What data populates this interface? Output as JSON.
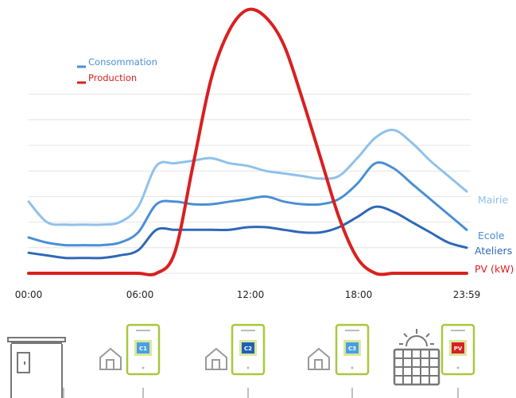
{
  "chart_data": {
    "type": "line",
    "x": [
      "00:00",
      "01:00",
      "02:00",
      "03:00",
      "04:00",
      "05:00",
      "06:00",
      "07:00",
      "08:00",
      "09:00",
      "10:00",
      "11:00",
      "12:00",
      "13:00",
      "14:00",
      "15:00",
      "16:00",
      "17:00",
      "18:00",
      "19:00",
      "20:00",
      "21:00",
      "22:00",
      "23:00",
      "23:59"
    ],
    "xticks": [
      "00:00",
      "06:00",
      "12:00",
      "18:00",
      "23:59"
    ],
    "legend": {
      "placement": "top-left",
      "items": [
        {
          "label": "Consommation",
          "color": "#4a8fd4"
        },
        {
          "label": "Production",
          "color": "#d92020"
        }
      ]
    },
    "grid": true,
    "ylim": [
      0,
      100
    ],
    "series": [
      {
        "name": "Mairie",
        "color": "#8fc1ea",
        "values": [
          28,
          20,
          19,
          19,
          19,
          20,
          26,
          42,
          43,
          44,
          45,
          43,
          42,
          40,
          39,
          38,
          37,
          38,
          45,
          53,
          56,
          51,
          44,
          38,
          32
        ]
      },
      {
        "name": "Ecole",
        "color": "#4a8fd4",
        "values": [
          14,
          12,
          11,
          11,
          11,
          12,
          16,
          27,
          28,
          27,
          27,
          28,
          29,
          30,
          28,
          27,
          27,
          29,
          35,
          43,
          41,
          35,
          29,
          23,
          17
        ]
      },
      {
        "name": "Ateliers",
        "color": "#2e68b8",
        "values": [
          8,
          7,
          6,
          6,
          6,
          7,
          9,
          17,
          17,
          17,
          17,
          17,
          18,
          18,
          17,
          16,
          16,
          18,
          22,
          26,
          24,
          20,
          16,
          12,
          10
        ]
      },
      {
        "name": "PV (kW)",
        "color": "#d92020",
        "values": [
          0,
          0,
          0,
          0,
          0,
          0,
          0,
          0,
          8,
          42,
          76,
          95,
          103,
          100,
          89,
          68,
          45,
          22,
          6,
          0,
          0,
          0,
          0,
          0,
          0
        ]
      }
    ]
  },
  "series_labels": {
    "mairie": "Mairie",
    "ecole": "Ecole",
    "ateliers": "Ateliers",
    "pv": "PV (kW)"
  },
  "meters": [
    {
      "code": "C1",
      "color": "#4a9fe0"
    },
    {
      "code": "C2",
      "color": "#2060b8"
    },
    {
      "code": "C3",
      "color": "#4a9fe0"
    },
    {
      "code": "PV",
      "color": "#d92020"
    }
  ],
  "icons": {
    "building": "building-icon",
    "house": "house-icon",
    "meter": "meter-icon",
    "solar_panel": "solar-panel-icon",
    "sun": "sun-icon"
  }
}
